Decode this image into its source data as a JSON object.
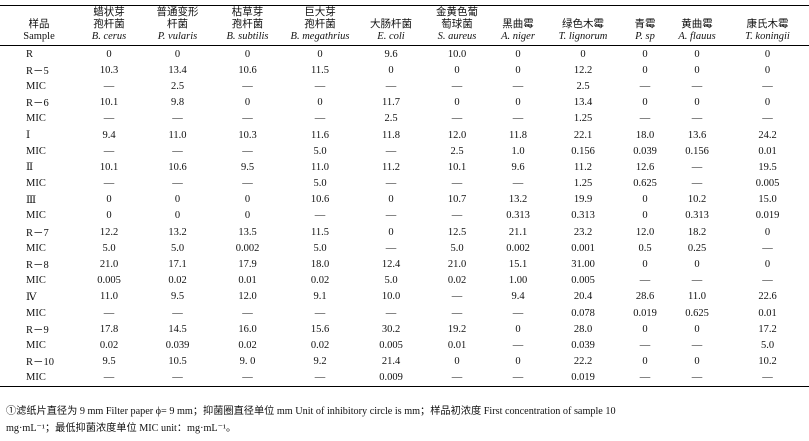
{
  "header": [
    {
      "cn": [
        "样品"
      ],
      "en": [
        "Sample"
      ]
    },
    {
      "cn": [
        "蜡状芽",
        "孢杆菌"
      ],
      "en": [
        "B. cerus"
      ]
    },
    {
      "cn": [
        "普通变形",
        "杆菌"
      ],
      "en": [
        "P. vularis"
      ]
    },
    {
      "cn": [
        "枯草芽",
        "孢杆菌"
      ],
      "en": [
        "B. subtilis"
      ]
    },
    {
      "cn": [
        "巨大芽",
        "孢杆菌"
      ],
      "en": [
        "B. megathrius"
      ]
    },
    {
      "cn": [
        "大肠杆菌"
      ],
      "en": [
        "E. coli"
      ]
    },
    {
      "cn": [
        "金黄色葡",
        "萄球菌"
      ],
      "en": [
        "S. aureus"
      ]
    },
    {
      "cn": [
        "黑曲霉"
      ],
      "en": [
        "A. niger"
      ]
    },
    {
      "cn": [
        "绿色木霉"
      ],
      "en": [
        "T. lignorum"
      ]
    },
    {
      "cn": [
        "青霉"
      ],
      "en": [
        "P. sp"
      ]
    },
    {
      "cn": [
        "黄曲霉"
      ],
      "en": [
        "A. flauus"
      ]
    },
    {
      "cn": [
        "康氏木霉"
      ],
      "en": [
        "T. koningii"
      ]
    }
  ],
  "rows": [
    [
      "R",
      "0",
      "0",
      "0",
      "0",
      "9.6",
      "10.0",
      "0",
      "0",
      "0",
      "0",
      "0"
    ],
    [
      "R－5",
      "10.3",
      "13.4",
      "10.6",
      "11.5",
      "0",
      "0",
      "0",
      "12.2",
      "0",
      "0",
      "0"
    ],
    [
      "MIC",
      "—",
      "2.5",
      "—",
      "—",
      "—",
      "—",
      "—",
      "2.5",
      "—",
      "—",
      "—"
    ],
    [
      "R－6",
      "10.1",
      "9.8",
      "0",
      "0",
      "11.7",
      "0",
      "0",
      "13.4",
      "0",
      "0",
      "0"
    ],
    [
      "MIC",
      "—",
      "—",
      "—",
      "—",
      "2.5",
      "—",
      "—",
      "1.25",
      "—",
      "—",
      "—"
    ],
    [
      "Ⅰ",
      "9.4",
      "11.0",
      "10.3",
      "11.6",
      "11.8",
      "12.0",
      "11.8",
      "22.1",
      "18.0",
      "13.6",
      "24.2"
    ],
    [
      "MIC",
      "—",
      "—",
      "—",
      "5.0",
      "—",
      "2.5",
      "1.0",
      "0.156",
      "0.039",
      "0.156",
      "0.01"
    ],
    [
      "Ⅱ",
      "10.1",
      "10.6",
      "9.5",
      "11.0",
      "11.2",
      "10.1",
      "9.6",
      "11.2",
      "12.6",
      "—",
      "19.5"
    ],
    [
      "MIC",
      "—",
      "—",
      "—",
      "5.0",
      "—",
      "—",
      "—",
      "1.25",
      "0.625",
      "—",
      "0.005"
    ],
    [
      "Ⅲ",
      "0",
      "0",
      "0",
      "10.6",
      "0",
      "10.7",
      "13.2",
      "19.9",
      "0",
      "10.2",
      "15.0"
    ],
    [
      "MIC",
      "0",
      "0",
      "0",
      "—",
      "—",
      "—",
      "0.313",
      "0.313",
      "0",
      "0.313",
      "0.019"
    ],
    [
      "R－7",
      "12.2",
      "13.2",
      "13.5",
      "11.5",
      "0",
      "12.5",
      "21.1",
      "23.2",
      "12.0",
      "18.2",
      "0"
    ],
    [
      "MIC",
      "5.0",
      "5.0",
      "0.002",
      "5.0",
      "—",
      "5.0",
      "0.002",
      "0.001",
      "0.5",
      "0.25",
      "—"
    ],
    [
      "R－8",
      "21.0",
      "17.1",
      "17.9",
      "18.0",
      "12.4",
      "21.0",
      "15.1",
      "31.00",
      "0",
      "0",
      "0"
    ],
    [
      "MIC",
      "0.005",
      "0.02",
      "0.01",
      "0.02",
      "5.0",
      "0.02",
      "1.00",
      "0.005",
      "—",
      "—",
      "—"
    ],
    [
      "Ⅳ",
      "11.0",
      "9.5",
      "12.0",
      "9.1",
      "10.0",
      "—",
      "9.4",
      "20.4",
      "28.6",
      "11.0",
      "22.6"
    ],
    [
      "MIC",
      "—",
      "—",
      "—",
      "—",
      "—",
      "—",
      "—",
      "0.078",
      "0.019",
      "0.625",
      "0.01"
    ],
    [
      "R－9",
      "17.8",
      "14.5",
      "16.0",
      "15.6",
      "30.2",
      "19.2",
      "0",
      "28.0",
      "0",
      "0",
      "17.2"
    ],
    [
      "MIC",
      "0.02",
      "0.039",
      "0.02",
      "0.02",
      "0.005",
      "0.01",
      "—",
      "0.039",
      "—",
      "—",
      "5.0"
    ],
    [
      "R－10",
      "9.5",
      "10.5",
      "9. 0",
      "9.2",
      "21.4",
      "0",
      "0",
      "22.2",
      "0",
      "0",
      "10.2"
    ],
    [
      "MIC",
      "—",
      "—",
      "—",
      "—",
      "0.009",
      "—",
      "—",
      "0.019",
      "—",
      "—",
      "—"
    ]
  ],
  "footnote": {
    "line1": "①滤纸片直径为 9 mm Filter paper ϕ= 9 mm；抑菌圈直径单位 mm Unit of inhibitory circle is mm；样品初浓度 First concentration of sample 10",
    "line2": "mg·mL⁻¹；最低抑菌浓度单位 MIC unit：mg·mL⁻¹。"
  }
}
